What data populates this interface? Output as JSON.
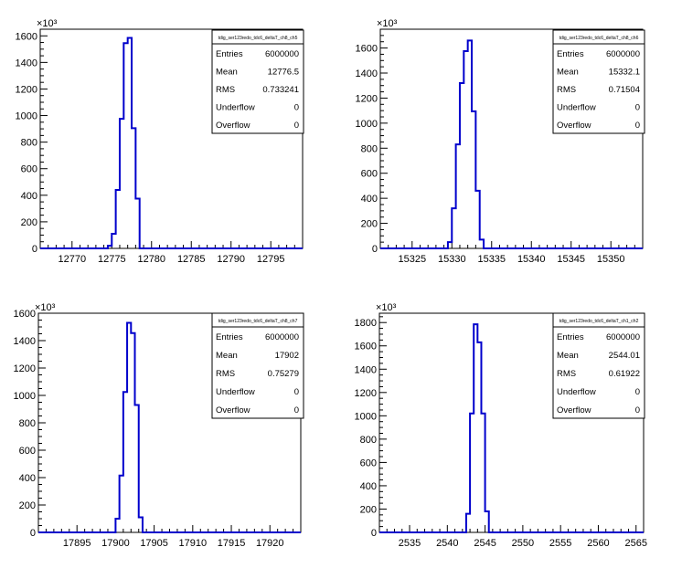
{
  "chart_data": [
    {
      "type": "histogram",
      "multiplier_label": "×10³",
      "xlim": [
        12766,
        12799
      ],
      "xticks": [
        12770,
        12775,
        12780,
        12785,
        12790,
        12795
      ],
      "ylim": [
        0,
        1650
      ],
      "yticks": [
        0,
        200,
        400,
        600,
        800,
        1000,
        1200,
        1400,
        1600
      ],
      "bin_width": 0.5,
      "bins_x": [
        12774.5,
        12775,
        12775.5,
        12776,
        12776.5,
        12777,
        12777.5,
        12778
      ],
      "bins_y": [
        20,
        110,
        440,
        975,
        1545,
        1585,
        905,
        375
      ],
      "line_color": "#0000cc",
      "stats": {
        "title": "tdig_ser123redo_tdc6_deltaT_ch8_ch5",
        "rows": [
          {
            "label": "Entries",
            "value": "6000000"
          },
          {
            "label": "Mean",
            "value": "12776.5"
          },
          {
            "label": "RMS",
            "value": "0.733241"
          },
          {
            "label": "Underflow",
            "value": "0"
          },
          {
            "label": "Overflow",
            "value": "0"
          }
        ]
      }
    },
    {
      "type": "histogram",
      "multiplier_label": "×10³",
      "xlim": [
        15321,
        15354
      ],
      "xticks": [
        15325,
        15330,
        15335,
        15340,
        15345,
        15350
      ],
      "ylim": [
        0,
        1750
      ],
      "yticks": [
        0,
        200,
        400,
        600,
        800,
        1000,
        1200,
        1400,
        1600
      ],
      "bin_width": 0.5,
      "bins_x": [
        15329.5,
        15330,
        15330.5,
        15331,
        15331.5,
        15332,
        15332.5,
        15333,
        15333.5
      ],
      "bins_y": [
        50,
        320,
        830,
        1320,
        1575,
        1660,
        1095,
        460,
        70
      ],
      "line_color": "#0000cc",
      "stats": {
        "title": "tdig_ser123redo_tdc6_deltaT_ch8_ch6",
        "rows": [
          {
            "label": "Entries",
            "value": "6000000"
          },
          {
            "label": "Mean",
            "value": "15332.1"
          },
          {
            "label": "RMS",
            "value": "0.71504"
          },
          {
            "label": "Underflow",
            "value": "0"
          },
          {
            "label": "Overflow",
            "value": "0"
          }
        ]
      }
    },
    {
      "type": "histogram",
      "multiplier_label": "×10³",
      "xlim": [
        17890,
        17924
      ],
      "xticks": [
        17895,
        17900,
        17905,
        17910,
        17915,
        17920
      ],
      "ylim": [
        0,
        1600
      ],
      "yticks": [
        0,
        200,
        400,
        600,
        800,
        1000,
        1200,
        1400,
        1600
      ],
      "bin_width": 0.5,
      "bins_x": [
        17900,
        17900.5,
        17901,
        17901.5,
        17902,
        17902.5,
        17903
      ],
      "bins_y": [
        100,
        415,
        1025,
        1530,
        1455,
        930,
        110
      ],
      "line_color": "#0000cc",
      "stats": {
        "title": "tdig_ser123redo_tdc6_deltaT_ch8_ch7",
        "rows": [
          {
            "label": "Entries",
            "value": "6000000"
          },
          {
            "label": "Mean",
            "value": "17902"
          },
          {
            "label": "RMS",
            "value": "0.75279"
          },
          {
            "label": "Underflow",
            "value": "0"
          },
          {
            "label": "Overflow",
            "value": "0"
          }
        ]
      }
    },
    {
      "type": "histogram",
      "multiplier_label": "×10³",
      "xlim": [
        2531,
        2566
      ],
      "xticks": [
        2535,
        2540,
        2545,
        2550,
        2555,
        2560,
        2565
      ],
      "ylim": [
        0,
        1880
      ],
      "yticks": [
        0,
        200,
        400,
        600,
        800,
        1000,
        1200,
        1400,
        1600,
        1800
      ],
      "bin_width": 0.5,
      "bins_x": [
        2542.5,
        2543,
        2543.5,
        2544,
        2544.5,
        2545
      ],
      "bins_y": [
        160,
        1020,
        1785,
        1630,
        1020,
        180
      ],
      "line_color": "#0000cc",
      "stats": {
        "title": "tdig_ser123redo_tdc6_deltaT_ch1_ch2",
        "rows": [
          {
            "label": "Entries",
            "value": "6000000"
          },
          {
            "label": "Mean",
            "value": "2544.01"
          },
          {
            "label": "RMS",
            "value": "0.61922"
          },
          {
            "label": "Underflow",
            "value": "0"
          },
          {
            "label": "Overflow",
            "value": "0"
          }
        ]
      }
    }
  ]
}
